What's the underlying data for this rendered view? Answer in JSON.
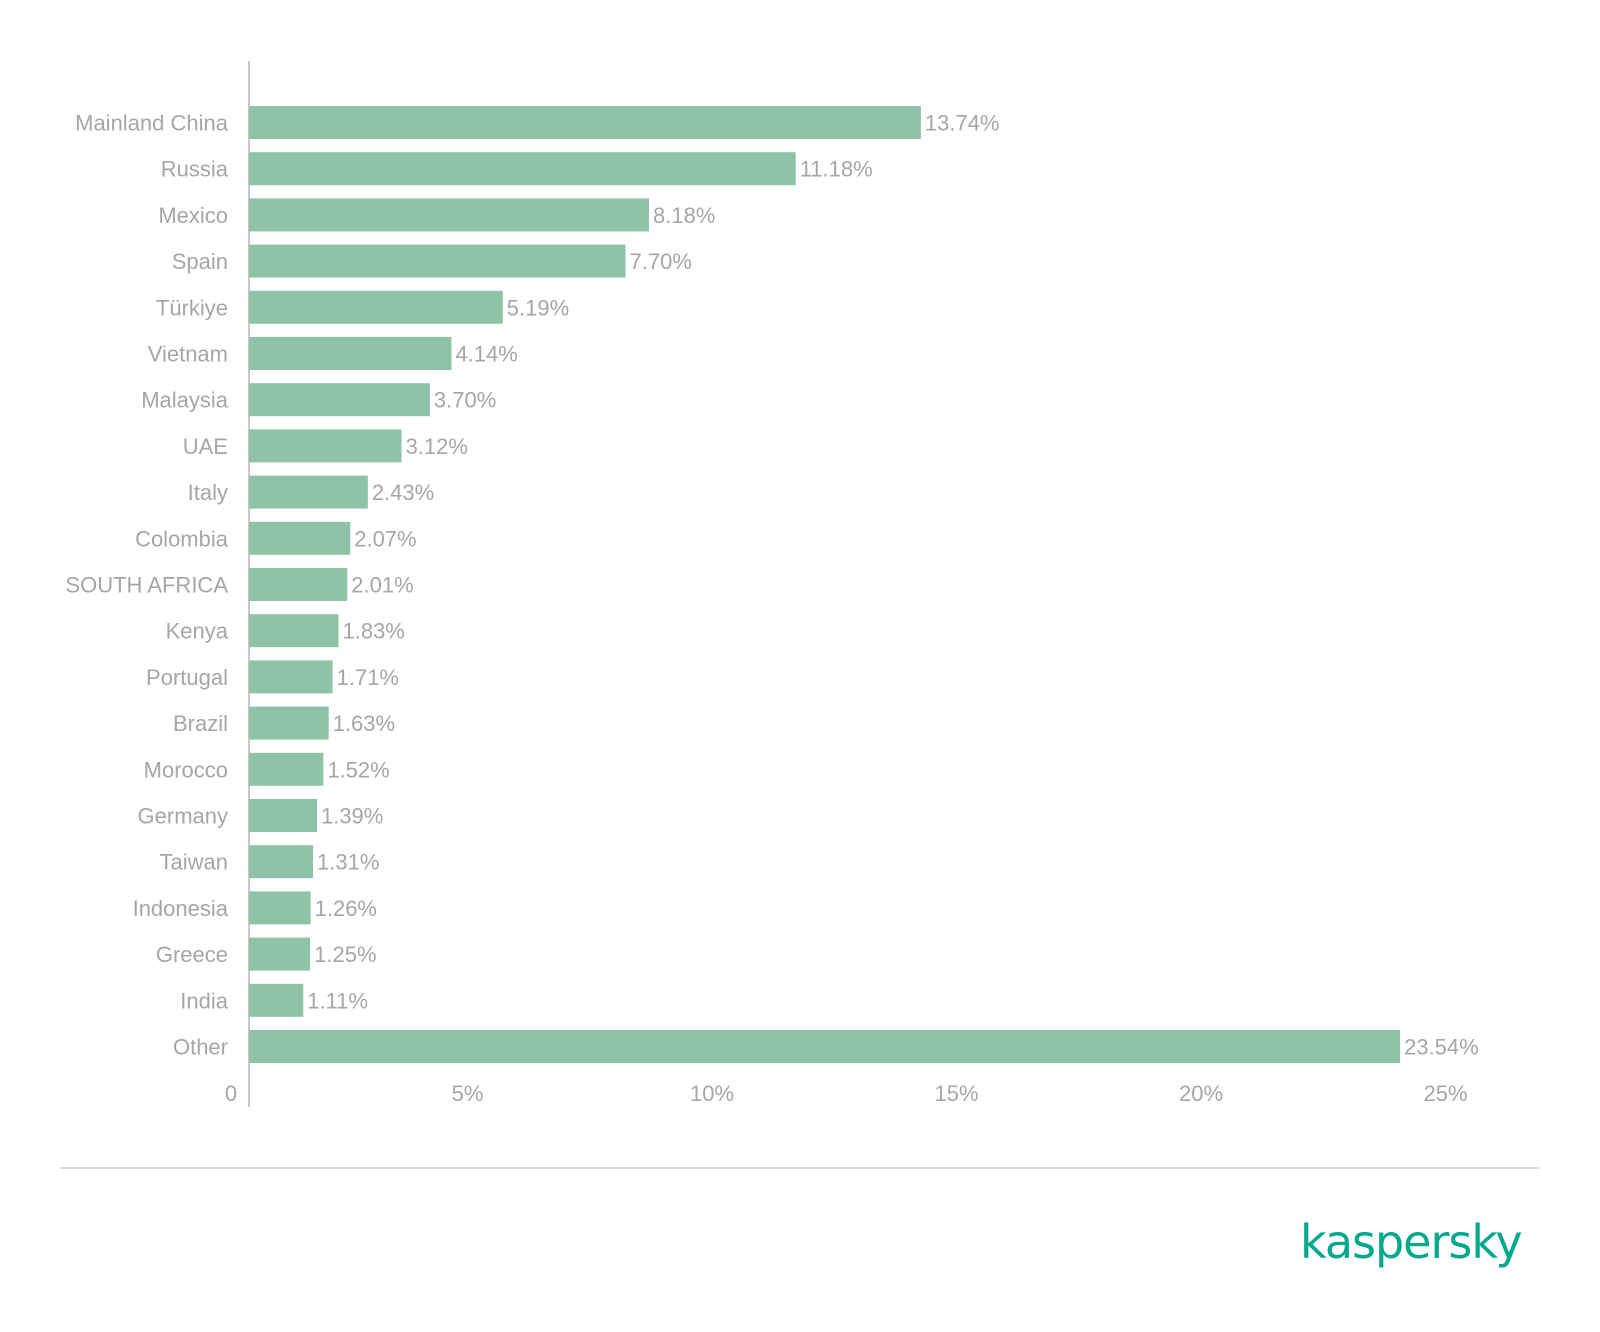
{
  "chart_data": {
    "type": "bar",
    "orientation": "horizontal",
    "categories": [
      "Mainland China",
      "Russia",
      "Mexico",
      "Spain",
      "Türkiye",
      "Vietnam",
      "Malaysia",
      "UAE",
      "Italy",
      "Colombia",
      "SOUTH AFRICA",
      "Kenya",
      "Portugal",
      "Brazil",
      "Morocco",
      "Germany",
      "Taiwan",
      "Indonesia",
      "Greece",
      "India",
      "Other"
    ],
    "values": [
      13.74,
      11.18,
      8.18,
      7.7,
      5.19,
      4.14,
      3.7,
      3.12,
      2.43,
      2.07,
      2.01,
      1.83,
      1.71,
      1.63,
      1.52,
      1.39,
      1.31,
      1.26,
      1.25,
      1.11,
      23.54
    ],
    "value_labels": [
      "13.74%",
      "11.18%",
      "8.18%",
      "7.70%",
      "5.19%",
      "4.14%",
      "3.70%",
      "3.12%",
      "2.43%",
      "2.07%",
      "2.01%",
      "1.83%",
      "1.71%",
      "1.63%",
      "1.52%",
      "1.39%",
      "1.31%",
      "1.26%",
      "1.25%",
      "1.11%",
      "23.54%"
    ],
    "x_ticks": [
      0,
      5,
      10,
      15,
      20,
      25
    ],
    "x_tick_labels": [
      "0",
      "5%",
      "10%",
      "15%",
      "20%",
      "25%"
    ],
    "xlim": [
      0,
      25
    ],
    "title": "",
    "xlabel": "",
    "ylabel": "",
    "grid": false,
    "bar_color": "#8fc3a7"
  },
  "brand": {
    "logo_text": "kaspersky",
    "color": "#00a88e"
  }
}
